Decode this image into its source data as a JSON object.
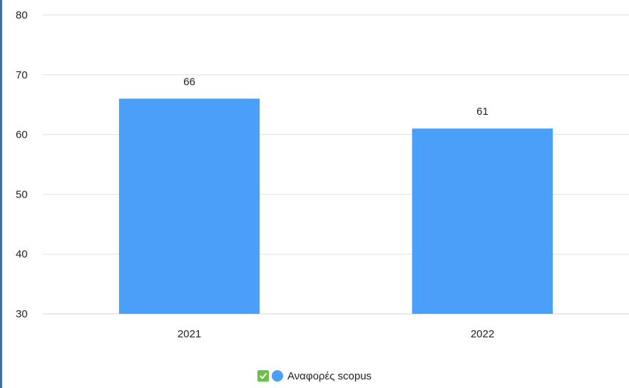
{
  "chart_data": {
    "type": "bar",
    "title": "",
    "xlabel": "",
    "ylabel": "",
    "categories": [
      "2021",
      "2022"
    ],
    "series": [
      {
        "name": "Αναφορές scopus",
        "values": [
          66,
          61
        ],
        "color": "#4aa0f8"
      }
    ],
    "ylim": [
      30,
      80
    ],
    "yticks": [
      30,
      40,
      50,
      60,
      70,
      80
    ],
    "grid": true,
    "legend": "bottom-center"
  },
  "legend": {
    "label": "Αναφορές scopus",
    "checked": true,
    "check_color": "#6cc04a",
    "icons": [
      "checkbox-checked-icon"
    ]
  },
  "colors": {
    "gridline": "#e2e2e2",
    "axis": "#ccd6eb",
    "text": "#222222"
  }
}
